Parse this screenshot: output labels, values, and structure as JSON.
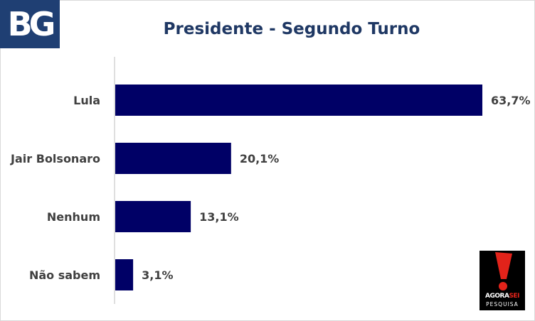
{
  "header": {
    "logo_text": "BG"
  },
  "chart_data": {
    "type": "bar",
    "orientation": "horizontal",
    "title": "Presidente - Segundo Turno",
    "categories": [
      "Lula",
      "Jair Bolsonaro",
      "Nenhum",
      "Não sabem"
    ],
    "values": [
      63.7,
      20.1,
      13.1,
      3.1
    ],
    "value_labels": [
      "63,7%",
      "20,1%",
      "13,1%",
      "3,1%"
    ],
    "xlim": [
      0,
      70
    ],
    "grid": false,
    "bar_color": "#000066"
  },
  "footer_logo": {
    "brand_a": "AGORA",
    "brand_b": "SEI",
    "sub": "PESQUISA",
    "accent": "#e2231a"
  }
}
